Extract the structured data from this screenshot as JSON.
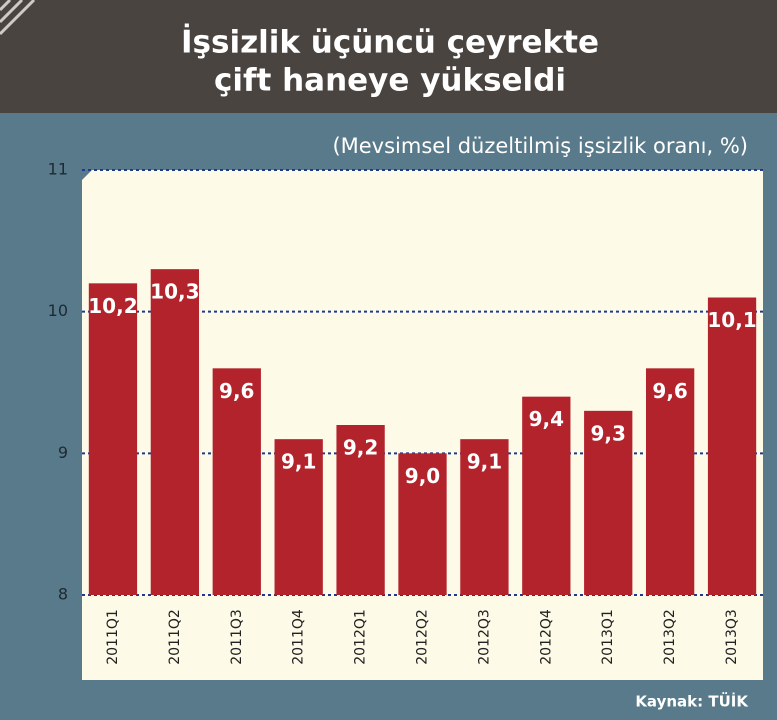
{
  "chart_data": {
    "type": "bar",
    "title": [
      "İşsizlik üçüncü çeyrekte",
      "çift haneye yükseldi"
    ],
    "subtitle": "(Mevsimsel düzeltilmiş işsizlik oranı, %)",
    "source": "Kaynak: TÜİK",
    "categories": [
      "2011Q1",
      "2011Q2",
      "2011Q3",
      "2011Q4",
      "2012Q1",
      "2012Q2",
      "2012Q3",
      "2012Q4",
      "2013Q1",
      "2013Q2",
      "2013Q3"
    ],
    "values": [
      10.2,
      10.3,
      9.6,
      9.1,
      9.2,
      9.0,
      9.1,
      9.4,
      9.3,
      9.6,
      10.1
    ],
    "value_labels": [
      "10,2",
      "10,3",
      "9,6",
      "9,1",
      "9,2",
      "9,0",
      "9,1",
      "9,4",
      "9,3",
      "9,6",
      "10,1"
    ],
    "color": "#b3232c",
    "ylim": [
      8,
      11
    ],
    "yticks": [
      8,
      9,
      10,
      11
    ],
    "grid": true
  }
}
